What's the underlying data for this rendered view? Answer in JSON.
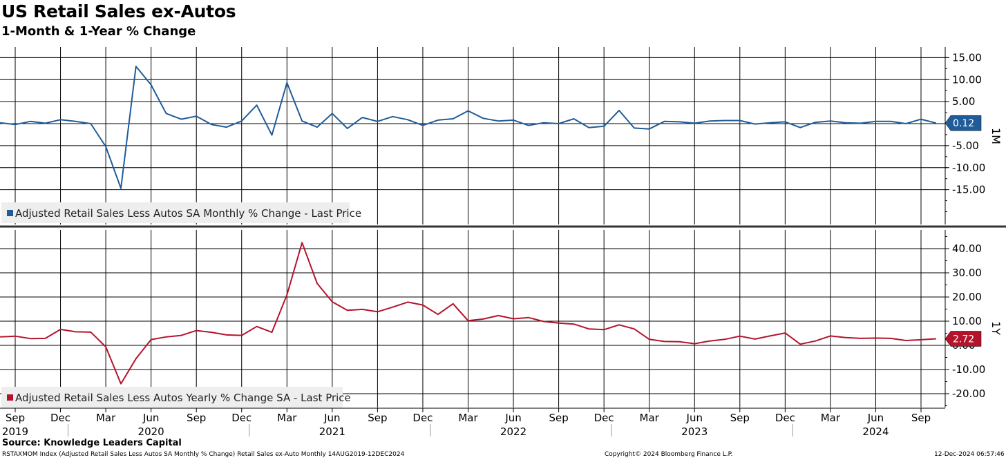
{
  "header": {
    "title": "US Retail Sales ex-Autos",
    "subtitle": "1-Month & 1-Year % Change"
  },
  "footer": {
    "source": "Source: Knowledge Leaders Capital",
    "ticker_text": "RSTAXMOM Index (Adjusted Retail Sales Less Autos SA Monthly % Change) Retail Sales ex-Auto  Monthly 14AUG2019-12DEC2024",
    "copyright": "Copyright© 2024 Bloomberg Finance L.P.",
    "timestamp": "12-Dec-2024 06:57:46"
  },
  "chart_data": [
    {
      "type": "line",
      "panel_label": "1M",
      "ylim": [
        -20,
        16
      ],
      "yticks": [
        "15.00",
        "10.00",
        "5.00",
        "0.00",
        "-5.00",
        "-10.00",
        "-15.00"
      ],
      "ytick_values": [
        15,
        10,
        5,
        0,
        -5,
        -10,
        -15
      ],
      "series": [
        {
          "name": "Adjusted Retail Sales Less Autos SA Monthly % Change - Last Price",
          "color": "#1f5c99",
          "last_value": "0.12",
          "x": [
            "2019-08",
            "2019-09",
            "2019-10",
            "2019-11",
            "2019-12",
            "2020-01",
            "2020-02",
            "2020-03",
            "2020-04",
            "2020-05",
            "2020-06",
            "2020-07",
            "2020-08",
            "2020-09",
            "2020-10",
            "2020-11",
            "2020-12",
            "2021-01",
            "2021-02",
            "2021-03",
            "2021-04",
            "2021-05",
            "2021-06",
            "2021-07",
            "2021-08",
            "2021-09",
            "2021-10",
            "2021-11",
            "2021-12",
            "2022-01",
            "2022-02",
            "2022-03",
            "2022-04",
            "2022-05",
            "2022-06",
            "2022-07",
            "2022-08",
            "2022-09",
            "2022-10",
            "2022-11",
            "2022-12",
            "2023-01",
            "2023-02",
            "2023-03",
            "2023-04",
            "2023-05",
            "2023-06",
            "2023-07",
            "2023-08",
            "2023-09",
            "2023-10",
            "2023-11",
            "2023-12",
            "2024-01",
            "2024-02",
            "2024-03",
            "2024-04",
            "2024-05",
            "2024-06",
            "2024-07",
            "2024-08",
            "2024-09",
            "2024-10"
          ],
          "values": [
            0.2,
            -0.2,
            0.5,
            0.1,
            0.9,
            0.5,
            0.0,
            -5.2,
            -14.7,
            13.0,
            8.8,
            2.3,
            1.0,
            1.7,
            -0.2,
            -0.8,
            0.6,
            4.2,
            -2.6,
            9.3,
            0.6,
            -0.8,
            2.3,
            -1.1,
            1.4,
            0.5,
            1.6,
            0.9,
            -0.4,
            0.8,
            1.1,
            2.9,
            1.2,
            0.6,
            0.8,
            -0.4,
            0.2,
            0.0,
            1.1,
            -0.9,
            -0.6,
            3.0,
            -1.0,
            -1.2,
            0.5,
            0.4,
            0.1,
            0.6,
            0.7,
            0.7,
            -0.1,
            0.2,
            0.4,
            -0.9,
            0.3,
            0.6,
            0.2,
            0.1,
            0.5,
            0.5,
            0.0,
            1.0,
            0.12
          ]
        }
      ]
    },
    {
      "type": "line",
      "panel_label": "1Y",
      "ylim": [
        -25,
        46
      ],
      "yticks": [
        "40.00",
        "30.00",
        "20.00",
        "10.00",
        "0.00",
        "-10.00",
        "-20.00"
      ],
      "ytick_values": [
        40,
        30,
        20,
        10,
        0,
        -10,
        -20
      ],
      "series": [
        {
          "name": "Adjusted Retail Sales Less Autos Yearly % Change SA - Last Price",
          "color": "#b5132b",
          "last_value": "2.72",
          "x": [
            "2019-08",
            "2019-09",
            "2019-10",
            "2019-11",
            "2019-12",
            "2020-01",
            "2020-02",
            "2020-03",
            "2020-04",
            "2020-05",
            "2020-06",
            "2020-07",
            "2020-08",
            "2020-09",
            "2020-10",
            "2020-11",
            "2020-12",
            "2021-01",
            "2021-02",
            "2021-03",
            "2021-04",
            "2021-05",
            "2021-06",
            "2021-07",
            "2021-08",
            "2021-09",
            "2021-10",
            "2021-11",
            "2021-12",
            "2022-01",
            "2022-02",
            "2022-03",
            "2022-04",
            "2022-05",
            "2022-06",
            "2022-07",
            "2022-08",
            "2022-09",
            "2022-10",
            "2022-11",
            "2022-12",
            "2023-01",
            "2023-02",
            "2023-03",
            "2023-04",
            "2023-05",
            "2023-06",
            "2023-07",
            "2023-08",
            "2023-09",
            "2023-10",
            "2023-11",
            "2023-12",
            "2024-01",
            "2024-02",
            "2024-03",
            "2024-04",
            "2024-05",
            "2024-06",
            "2024-07",
            "2024-08",
            "2024-09",
            "2024-10"
          ],
          "values": [
            3.5,
            3.8,
            2.8,
            2.9,
            6.6,
            5.6,
            5.5,
            -0.6,
            -15.9,
            -5.5,
            2.4,
            3.5,
            4.1,
            6.1,
            5.4,
            4.3,
            4.1,
            7.8,
            5.4,
            20.9,
            42.5,
            25.6,
            18.0,
            14.5,
            14.9,
            13.9,
            15.8,
            17.9,
            16.7,
            12.8,
            17.2,
            10.2,
            10.9,
            12.3,
            11.0,
            11.5,
            9.9,
            9.2,
            8.8,
            6.8,
            6.5,
            8.5,
            6.8,
            2.5,
            1.6,
            1.5,
            0.7,
            1.8,
            2.5,
            3.8,
            2.6,
            3.9,
            5.1,
            0.5,
            1.8,
            3.9,
            3.2,
            2.9,
            3.0,
            2.9,
            2.0,
            2.3,
            2.72
          ]
        }
      ]
    }
  ],
  "x_axis": {
    "months": [
      {
        "label": "Sep",
        "x": "2019-09"
      },
      {
        "label": "Dec",
        "x": "2019-12"
      },
      {
        "label": "Mar",
        "x": "2020-03"
      },
      {
        "label": "Jun",
        "x": "2020-06"
      },
      {
        "label": "Sep",
        "x": "2020-09"
      },
      {
        "label": "Dec",
        "x": "2020-12"
      },
      {
        "label": "Mar",
        "x": "2021-03"
      },
      {
        "label": "Jun",
        "x": "2021-06"
      },
      {
        "label": "Sep",
        "x": "2021-09"
      },
      {
        "label": "Dec",
        "x": "2021-12"
      },
      {
        "label": "Mar",
        "x": "2022-03"
      },
      {
        "label": "Jun",
        "x": "2022-06"
      },
      {
        "label": "Sep",
        "x": "2022-09"
      },
      {
        "label": "Dec",
        "x": "2022-12"
      },
      {
        "label": "Mar",
        "x": "2023-03"
      },
      {
        "label": "Jun",
        "x": "2023-06"
      },
      {
        "label": "Sep",
        "x": "2023-09"
      },
      {
        "label": "Dec",
        "x": "2023-12"
      },
      {
        "label": "Mar",
        "x": "2024-03"
      },
      {
        "label": "Jun",
        "x": "2024-06"
      },
      {
        "label": "Sep",
        "x": "2024-09"
      }
    ],
    "years": [
      {
        "label": "2019",
        "x": "2019-09"
      },
      {
        "label": "2020",
        "x": "2020-06"
      },
      {
        "label": "2021",
        "x": "2021-06"
      },
      {
        "label": "2022",
        "x": "2022-06"
      },
      {
        "label": "2023",
        "x": "2023-06"
      },
      {
        "label": "2024",
        "x": "2024-06"
      }
    ],
    "year_starts": [
      "2020-01",
      "2021-01",
      "2022-01",
      "2023-01",
      "2024-01"
    ]
  }
}
